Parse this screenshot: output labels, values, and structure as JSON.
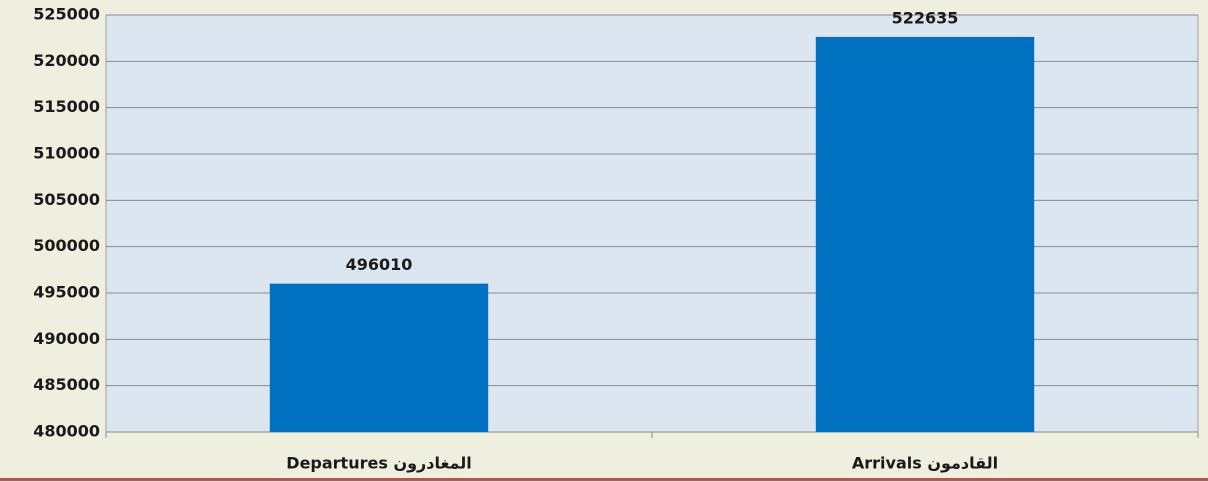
{
  "chart_data": {
    "type": "bar",
    "categories": [
      "Departures  المغادرون",
      "Arrivals  القادمون"
    ],
    "values": [
      496010,
      522635
    ],
    "color": "#0070c0",
    "ylim": [
      480000,
      525000
    ],
    "yticks": [
      480000,
      485000,
      490000,
      495000,
      500000,
      505000,
      510000,
      515000,
      520000,
      525000
    ],
    "grid": true
  }
}
